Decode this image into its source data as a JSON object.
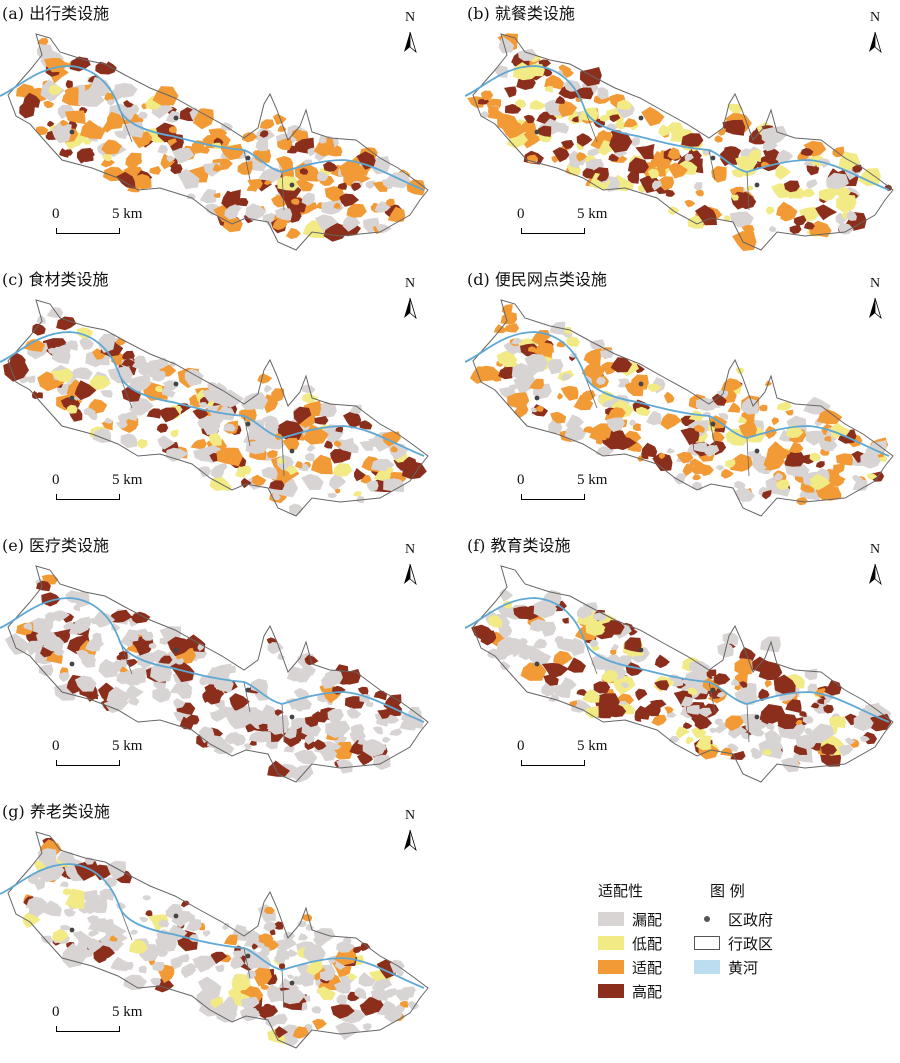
{
  "panels": [
    {
      "title": "(a) 出行类设施",
      "dist": {
        "漏配": 0.25,
        "低配": 0.05,
        "适配": 0.5,
        "高配": 0.2
      }
    },
    {
      "title": "(b) 就餐类设施",
      "dist": {
        "漏配": 0.2,
        "低配": 0.3,
        "适配": 0.25,
        "高配": 0.25
      }
    },
    {
      "title": "(c) 食材类设施",
      "dist": {
        "漏配": 0.45,
        "低配": 0.1,
        "适配": 0.25,
        "高配": 0.2
      }
    },
    {
      "title": "(d) 便民网点类设施",
      "dist": {
        "漏配": 0.3,
        "低配": 0.15,
        "适配": 0.4,
        "高配": 0.15
      }
    },
    {
      "title": "(e) 医疗类设施",
      "dist": {
        "漏配": 0.7,
        "低配": 0.0,
        "适配": 0.05,
        "高配": 0.25
      }
    },
    {
      "title": "(f) 教育类设施",
      "dist": {
        "漏配": 0.45,
        "低配": 0.1,
        "适配": 0.15,
        "高配": 0.3
      }
    },
    {
      "title": "(g) 养老类设施",
      "dist": {
        "漏配": 0.65,
        "低配": 0.1,
        "适配": 0.08,
        "高配": 0.17
      }
    }
  ],
  "north_label": "N",
  "scale": {
    "zero": "0",
    "five": "5 km"
  },
  "legend": {
    "suitability_title": "适配性",
    "legend_title": "图 例",
    "classes": [
      {
        "label": "漏配",
        "color": "#d9d4d4"
      },
      {
        "label": "低配",
        "color": "#f2ea84"
      },
      {
        "label": "适配",
        "color": "#f29a35"
      },
      {
        "label": "高配",
        "color": "#8b2e1c"
      }
    ],
    "symbols": [
      {
        "label": "区政府",
        "icon": "dot-icon"
      },
      {
        "label": "行政区",
        "icon": "outline-box-icon"
      },
      {
        "label": "黄河",
        "icon": "river-icon"
      }
    ]
  },
  "colors": {
    "漏配": "#d9d4d4",
    "低配": "#f2ea84",
    "适配": "#f29a35",
    "高配": "#8b2e1c",
    "river": "#5ea8d3",
    "outline": "#666666"
  }
}
